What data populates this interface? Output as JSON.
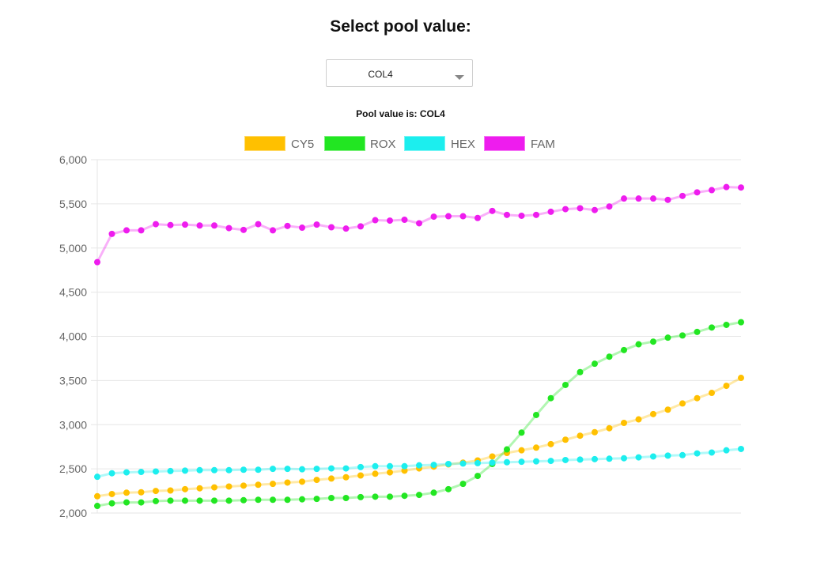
{
  "header": {
    "title": "Select pool value:"
  },
  "dropdown": {
    "selected": "COL4"
  },
  "pool_status": "Pool value is: COL4",
  "chart_data": {
    "type": "line",
    "title": "",
    "xlabel": "",
    "ylabel": "",
    "ylim": [
      2000,
      6000
    ],
    "y_ticks": [
      "2,000",
      "2,500",
      "3,000",
      "3,500",
      "4,000",
      "4,500",
      "5,000",
      "5,500",
      "6,000"
    ],
    "x_ticks_shown": false,
    "grid": true,
    "legend_position": "top",
    "x": [
      1,
      2,
      3,
      4,
      5,
      6,
      7,
      8,
      9,
      10,
      11,
      12,
      13,
      14,
      15,
      16,
      17,
      18,
      19,
      20,
      21,
      22,
      23,
      24,
      25,
      26,
      27,
      28,
      29,
      30,
      31,
      32,
      33,
      34,
      35,
      36,
      37,
      38,
      39,
      40,
      41,
      42,
      43,
      44,
      45
    ],
    "series": [
      {
        "name": "CY5",
        "color": "#FFC000",
        "values": [
          2190,
          2215,
          2230,
          2235,
          2250,
          2255,
          2270,
          2280,
          2290,
          2300,
          2310,
          2320,
          2330,
          2345,
          2355,
          2375,
          2390,
          2405,
          2425,
          2445,
          2460,
          2480,
          2505,
          2525,
          2550,
          2570,
          2595,
          2640,
          2680,
          2710,
          2740,
          2780,
          2830,
          2875,
          2915,
          2960,
          3020,
          3060,
          3120,
          3170,
          3240,
          3300,
          3360,
          3440,
          3530
        ]
      },
      {
        "name": "ROX",
        "color": "#22E622",
        "values": [
          2080,
          2110,
          2120,
          2120,
          2135,
          2140,
          2140,
          2140,
          2140,
          2140,
          2145,
          2150,
          2150,
          2150,
          2155,
          2160,
          2170,
          2170,
          2180,
          2185,
          2185,
          2195,
          2205,
          2230,
          2270,
          2330,
          2420,
          2555,
          2720,
          2910,
          3110,
          3300,
          3450,
          3595,
          3690,
          3770,
          3845,
          3910,
          3940,
          3985,
          4010,
          4050,
          4100,
          4130,
          4160
        ]
      },
      {
        "name": "HEX",
        "color": "#1CEEEE",
        "values": [
          2410,
          2450,
          2460,
          2465,
          2470,
          2475,
          2480,
          2485,
          2485,
          2485,
          2490,
          2490,
          2500,
          2500,
          2495,
          2500,
          2505,
          2505,
          2520,
          2530,
          2530,
          2530,
          2540,
          2545,
          2555,
          2560,
          2565,
          2570,
          2575,
          2580,
          2585,
          2590,
          2600,
          2605,
          2610,
          2615,
          2620,
          2630,
          2640,
          2650,
          2655,
          2675,
          2685,
          2710,
          2725
        ]
      },
      {
        "name": "FAM",
        "color": "#EE1CEE",
        "values": [
          4840,
          5160,
          5200,
          5200,
          5270,
          5260,
          5265,
          5255,
          5255,
          5225,
          5205,
          5270,
          5200,
          5250,
          5230,
          5265,
          5235,
          5220,
          5245,
          5315,
          5310,
          5320,
          5280,
          5355,
          5360,
          5360,
          5340,
          5420,
          5375,
          5365,
          5375,
          5410,
          5440,
          5450,
          5430,
          5470,
          5560,
          5560,
          5560,
          5545,
          5590,
          5630,
          5655,
          5690,
          5685
        ]
      }
    ]
  }
}
